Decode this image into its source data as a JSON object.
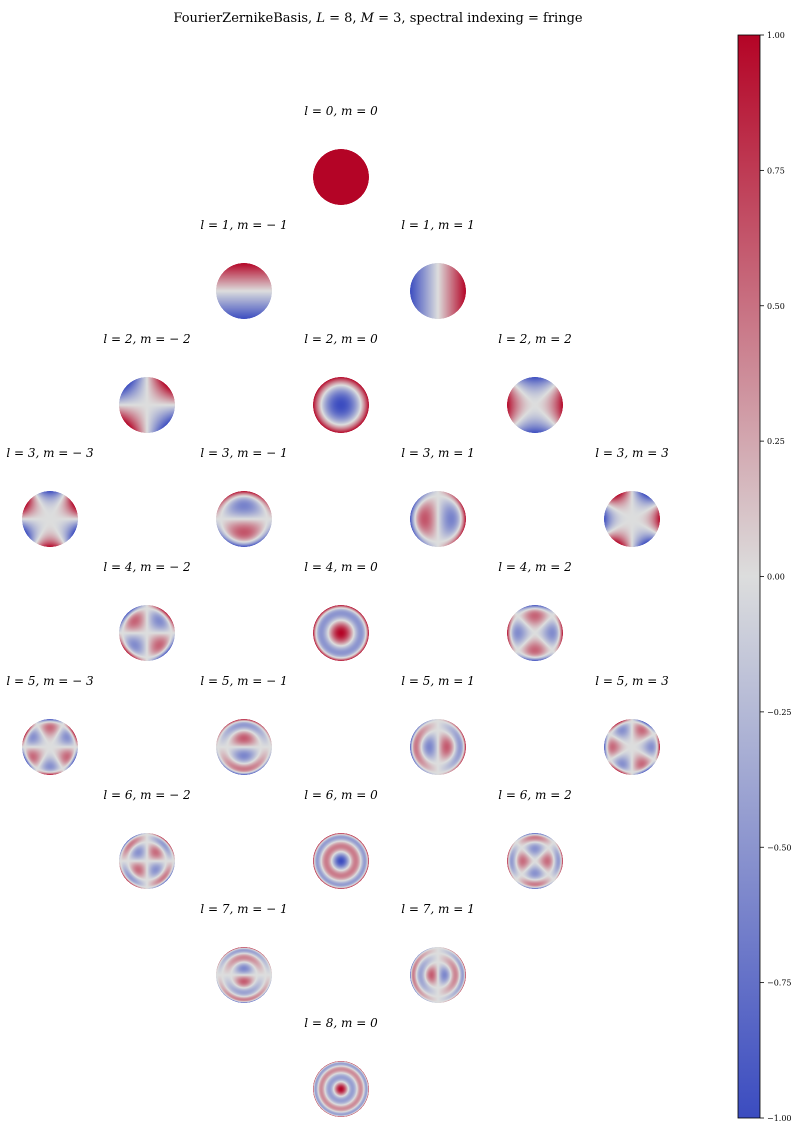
{
  "chart_data": {
    "type": "heatmap",
    "title": "FourierZernikeBasis, L = 8,  M = 3, spectral indexing = fringe",
    "title_parts": {
      "name": "FourierZernikeBasis,",
      "L_sym": "L",
      "L_val": "= 8,",
      "M_sym": "M",
      "M_val": "= 3,",
      "rest": "spectral indexing = fringe"
    },
    "L": 8,
    "M": 3,
    "indexing": "fringe",
    "colormap": {
      "name": "coolwarm",
      "stops": [
        "#3b4cc0",
        "#dcdddd",
        "#b40426"
      ],
      "range": [
        -1.0,
        1.0
      ]
    },
    "colorbar": {
      "location": "right",
      "ticks": [
        1.0,
        0.75,
        0.5,
        0.25,
        0.0,
        -0.25,
        -0.5,
        -0.75,
        -1.0
      ],
      "tick_labels": [
        "1.00",
        "0.75",
        "0.50",
        "0.25",
        "0.00",
        "−0.25",
        "−0.50",
        "−0.75",
        "−1.00"
      ]
    },
    "modes": [
      {
        "l": 0,
        "m": 0,
        "label": "l = 0, m = 0"
      },
      {
        "l": 1,
        "m": -1,
        "label": "l = 1, m = − 1"
      },
      {
        "l": 1,
        "m": 1,
        "label": "l = 1, m = 1"
      },
      {
        "l": 2,
        "m": -2,
        "label": "l = 2, m = − 2"
      },
      {
        "l": 2,
        "m": 0,
        "label": "l = 2, m = 0"
      },
      {
        "l": 2,
        "m": 2,
        "label": "l = 2, m = 2"
      },
      {
        "l": 3,
        "m": -3,
        "label": "l = 3, m = − 3"
      },
      {
        "l": 3,
        "m": -1,
        "label": "l = 3, m = − 1"
      },
      {
        "l": 3,
        "m": 1,
        "label": "l = 3, m = 1"
      },
      {
        "l": 3,
        "m": 3,
        "label": "l = 3, m = 3"
      },
      {
        "l": 4,
        "m": -2,
        "label": "l = 4, m = − 2"
      },
      {
        "l": 4,
        "m": 0,
        "label": "l = 4, m = 0"
      },
      {
        "l": 4,
        "m": 2,
        "label": "l = 4, m = 2"
      },
      {
        "l": 5,
        "m": -3,
        "label": "l = 5, m = − 3"
      },
      {
        "l": 5,
        "m": -1,
        "label": "l = 5, m = − 1"
      },
      {
        "l": 5,
        "m": 1,
        "label": "l = 5, m = 1"
      },
      {
        "l": 5,
        "m": 3,
        "label": "l = 5, m = 3"
      },
      {
        "l": 6,
        "m": -2,
        "label": "l = 6, m = − 2"
      },
      {
        "l": 6,
        "m": 0,
        "label": "l = 6, m = 0"
      },
      {
        "l": 6,
        "m": 2,
        "label": "l = 6, m = 2"
      },
      {
        "l": 7,
        "m": -1,
        "label": "l = 7, m = − 1"
      },
      {
        "l": 7,
        "m": 1,
        "label": "l = 7, m = 1"
      },
      {
        "l": 8,
        "m": 0,
        "label": "l = 8, m = 0"
      }
    ]
  }
}
